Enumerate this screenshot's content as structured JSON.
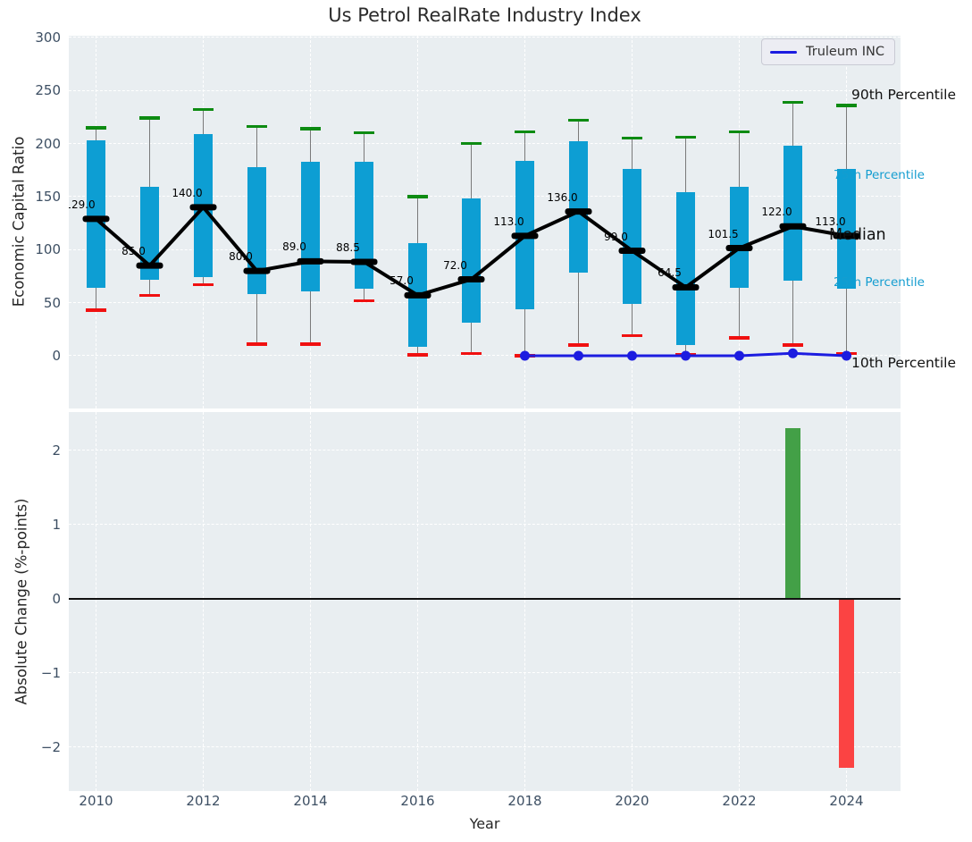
{
  "title": "Us Petrol RealRate Industry Index",
  "legend": {
    "label": "Truleum INC"
  },
  "colors": {
    "axes_bg": "#e9eef1",
    "grid": "#ffffff",
    "tick_label": "#3d4f63",
    "text": "#262626",
    "box_fill": "#0d9ed3",
    "whisker": "#7a7a7a",
    "cap_90th": "#0d8b12",
    "cap_10th": "#f01010",
    "median_line": "#000000",
    "truleum_line": "#1c1ce0",
    "bar_positive": "#43a047",
    "bar_negative": "#fb4343",
    "annotation_cyan": "#149dd0",
    "annotation_black": "#111111"
  },
  "chart_data": [
    {
      "type": "box-whisker-percentile-timeseries",
      "title": "Us Petrol RealRate Industry Index",
      "ylabel": "Economic Capital Ratio",
      "grid": true,
      "ylim": [
        -48,
        302
      ],
      "yticks": [
        {
          "v": 0,
          "label": "0"
        },
        {
          "v": 50,
          "label": "50"
        },
        {
          "v": 100,
          "label": "100"
        },
        {
          "v": 150,
          "label": "150"
        },
        {
          "v": 200,
          "label": "200"
        },
        {
          "v": 250,
          "label": "250"
        },
        {
          "v": 300,
          "label": "300"
        }
      ],
      "years": [
        2010,
        2011,
        2012,
        2013,
        2014,
        2015,
        2016,
        2017,
        2018,
        2019,
        2020,
        2021,
        2022,
        2023,
        2024
      ],
      "p90": [
        215,
        224,
        232,
        216,
        214,
        210,
        150,
        200,
        211,
        222,
        205,
        206,
        211,
        239,
        236
      ],
      "p75": [
        203,
        159,
        209,
        178,
        183,
        183,
        106,
        148,
        184,
        202,
        176,
        154,
        159,
        198,
        176
      ],
      "median": [
        129,
        85,
        140,
        80,
        89,
        88.5,
        57,
        72,
        113,
        136,
        99,
        64.5,
        101.5,
        122,
        113
      ],
      "p25": [
        64,
        72,
        74,
        58,
        61,
        63,
        8,
        31,
        44,
        78,
        49,
        10,
        64,
        71,
        63
      ],
      "p10": [
        43,
        57,
        67,
        11,
        11,
        52,
        1,
        2,
        0,
        10,
        19,
        1,
        17,
        10,
        2
      ],
      "median_labels": [
        "129.0",
        "85.0",
        "140.0",
        "80.0",
        "89.0",
        "88.5",
        "57.0",
        "72.0",
        "113.0",
        "136.0",
        "99.0",
        "64.5",
        "101.5",
        "122.0",
        "113.0"
      ],
      "series": [
        {
          "name": "Truleum INC",
          "years": [
            2018,
            2019,
            2020,
            2021,
            2022,
            2023,
            2024
          ],
          "values": [
            0,
            0,
            0,
            0,
            0,
            2.3,
            0
          ]
        }
      ],
      "annotations": [
        {
          "role": "p90",
          "text": "90th Percentile"
        },
        {
          "role": "p75",
          "text": "75th Percentile"
        },
        {
          "role": "median",
          "text": "Median"
        },
        {
          "role": "p25",
          "text": "25th Percentile"
        },
        {
          "role": "p10",
          "text": "10th Percentile"
        }
      ],
      "legend_position": "upper right"
    },
    {
      "type": "bar",
      "ylabel": "Absolute Change (%-points)",
      "xlabel": "Year",
      "grid": true,
      "ylim": [
        -2.59,
        2.55
      ],
      "yticks": [
        {
          "v": 2,
          "label": "2"
        },
        {
          "v": 1,
          "label": "1"
        },
        {
          "v": 0,
          "label": "0"
        },
        {
          "v": -1,
          "label": "−1"
        },
        {
          "v": -2,
          "label": "−2"
        }
      ],
      "xticks": [
        {
          "year": 2010,
          "label": "2010"
        },
        {
          "year": 2012,
          "label": "2012"
        },
        {
          "year": 2014,
          "label": "2014"
        },
        {
          "year": 2016,
          "label": "2016"
        },
        {
          "year": 2018,
          "label": "2018"
        },
        {
          "year": 2020,
          "label": "2020"
        },
        {
          "year": 2022,
          "label": "2022"
        },
        {
          "year": 2024,
          "label": "2024"
        }
      ],
      "bars": [
        {
          "year": 2023,
          "value": 2.3
        },
        {
          "year": 2024,
          "value": -2.28
        }
      ],
      "zero_line": true
    }
  ]
}
